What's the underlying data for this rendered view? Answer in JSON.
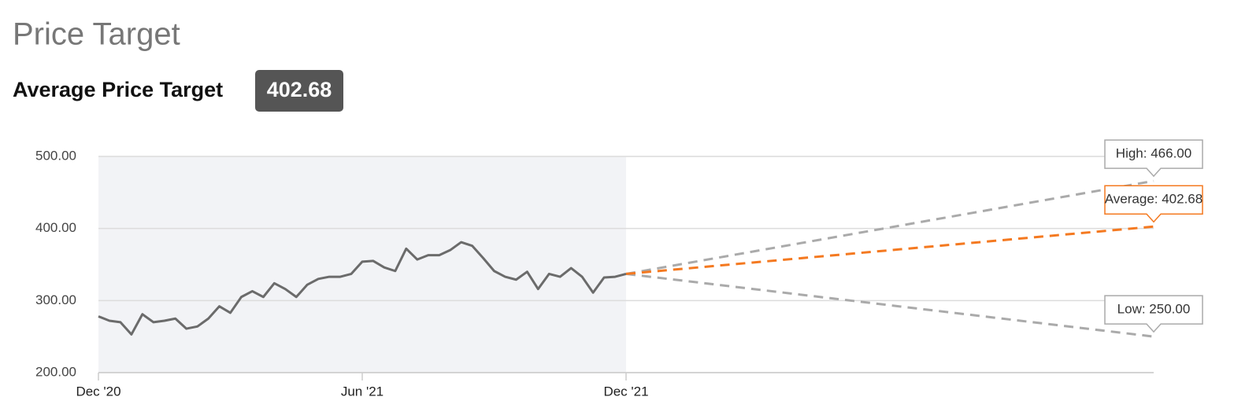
{
  "header": {
    "title": "Price Target",
    "average_label": "Average Price Target",
    "average_value": "402.68"
  },
  "chart_data": {
    "type": "line",
    "xlim": [
      0,
      24
    ],
    "xticks": [
      {
        "value": 0,
        "label": "Dec '20"
      },
      {
        "value": 6,
        "label": "Jun '21"
      },
      {
        "value": 12,
        "label": "Dec '21"
      }
    ],
    "ylim": [
      200,
      500
    ],
    "yticks": [
      {
        "value": 200,
        "label": "200.00"
      },
      {
        "value": 300,
        "label": "300.00"
      },
      {
        "value": 400,
        "label": "400.00"
      },
      {
        "value": 500,
        "label": "500.00"
      }
    ],
    "grid": true,
    "series": [
      {
        "color": "#6b6b6b",
        "x": [
          0,
          0.25,
          0.5,
          0.75,
          1,
          1.25,
          1.5,
          1.75,
          2,
          2.25,
          2.5,
          2.75,
          3,
          3.25,
          3.5,
          3.75,
          4,
          4.25,
          4.5,
          4.75,
          5,
          5.25,
          5.5,
          5.75,
          6,
          6.25,
          6.5,
          6.75,
          7,
          7.25,
          7.5,
          7.75,
          8,
          8.25,
          8.5,
          8.75,
          9,
          9.25,
          9.5,
          9.75,
          10,
          10.25,
          10.5,
          10.75,
          11,
          11.25,
          11.5,
          11.75,
          12
        ],
        "values": [
          278,
          272,
          270,
          253,
          281,
          270,
          272,
          275,
          261,
          264,
          275,
          292,
          283,
          305,
          313,
          305,
          324,
          316,
          305,
          322,
          330,
          333,
          333,
          337,
          354,
          355,
          346,
          341,
          372,
          357,
          363,
          363,
          370,
          381,
          376,
          359,
          341,
          333,
          329,
          340,
          316,
          337,
          333,
          345,
          333,
          311,
          332,
          333,
          337
        ]
      }
    ],
    "targets": [
      {
        "label": "High: 466.00",
        "value": 466,
        "x": 24,
        "color": "#aaaaaa"
      },
      {
        "label": "Average: 402.68",
        "value": 402.68,
        "x": 24,
        "color": "#f47920"
      },
      {
        "label": "Low: 250.00",
        "value": 250,
        "x": 24,
        "color": "#aaaaaa"
      }
    ]
  }
}
